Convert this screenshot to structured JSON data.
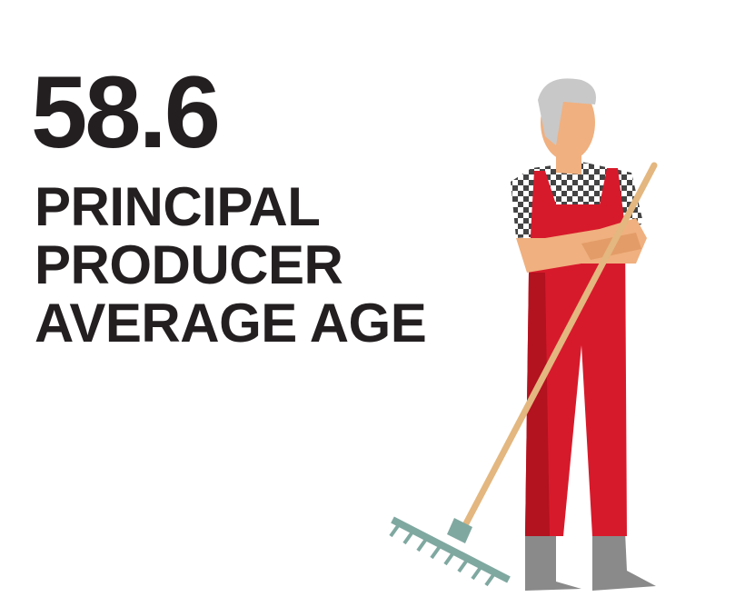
{
  "stat": {
    "value": "58.6",
    "label_lines": [
      "PRINCIPAL",
      "PRODUCER",
      "AVERAGE AGE"
    ]
  }
}
